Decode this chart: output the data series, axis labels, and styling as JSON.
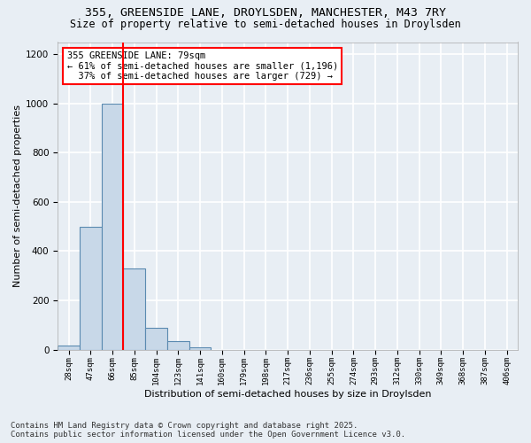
{
  "title_line1": "355, GREENSIDE LANE, DROYLSDEN, MANCHESTER, M43 7RY",
  "title_line2": "Size of property relative to semi-detached houses in Droylsden",
  "xlabel": "Distribution of semi-detached houses by size in Droylsden",
  "ylabel": "Number of semi-detached properties",
  "bin_labels": [
    "28sqm",
    "47sqm",
    "66sqm",
    "85sqm",
    "104sqm",
    "123sqm",
    "141sqm",
    "160sqm",
    "179sqm",
    "198sqm",
    "217sqm",
    "236sqm",
    "255sqm",
    "274sqm",
    "293sqm",
    "312sqm",
    "330sqm",
    "349sqm",
    "368sqm",
    "387sqm",
    "406sqm"
  ],
  "bar_heights": [
    15,
    500,
    1000,
    330,
    90,
    35,
    10,
    0,
    0,
    0,
    0,
    0,
    0,
    0,
    0,
    0,
    0,
    0,
    0,
    0,
    0
  ],
  "bar_color": "#c8d8e8",
  "bar_edge_color": "#5a8ab0",
  "property_line_x": 2.5,
  "property_line_color": "red",
  "annotation_text": "355 GREENSIDE LANE: 79sqm\n← 61% of semi-detached houses are smaller (1,196)\n  37% of semi-detached houses are larger (729) →",
  "annotation_box_color": "white",
  "annotation_box_edge_color": "red",
  "ylim": [
    0,
    1250
  ],
  "yticks": [
    0,
    200,
    400,
    600,
    800,
    1000,
    1200
  ],
  "footer_line1": "Contains HM Land Registry data © Crown copyright and database right 2025.",
  "footer_line2": "Contains public sector information licensed under the Open Government Licence v3.0.",
  "bg_color": "#e8eef4",
  "plot_bg_color": "#e8eef4",
  "grid_color": "white",
  "title_fontsize": 9.5,
  "subtitle_fontsize": 8.5,
  "annotation_fontsize": 7.5,
  "footer_fontsize": 6.5,
  "ylabel_fontsize": 8,
  "xlabel_fontsize": 8
}
